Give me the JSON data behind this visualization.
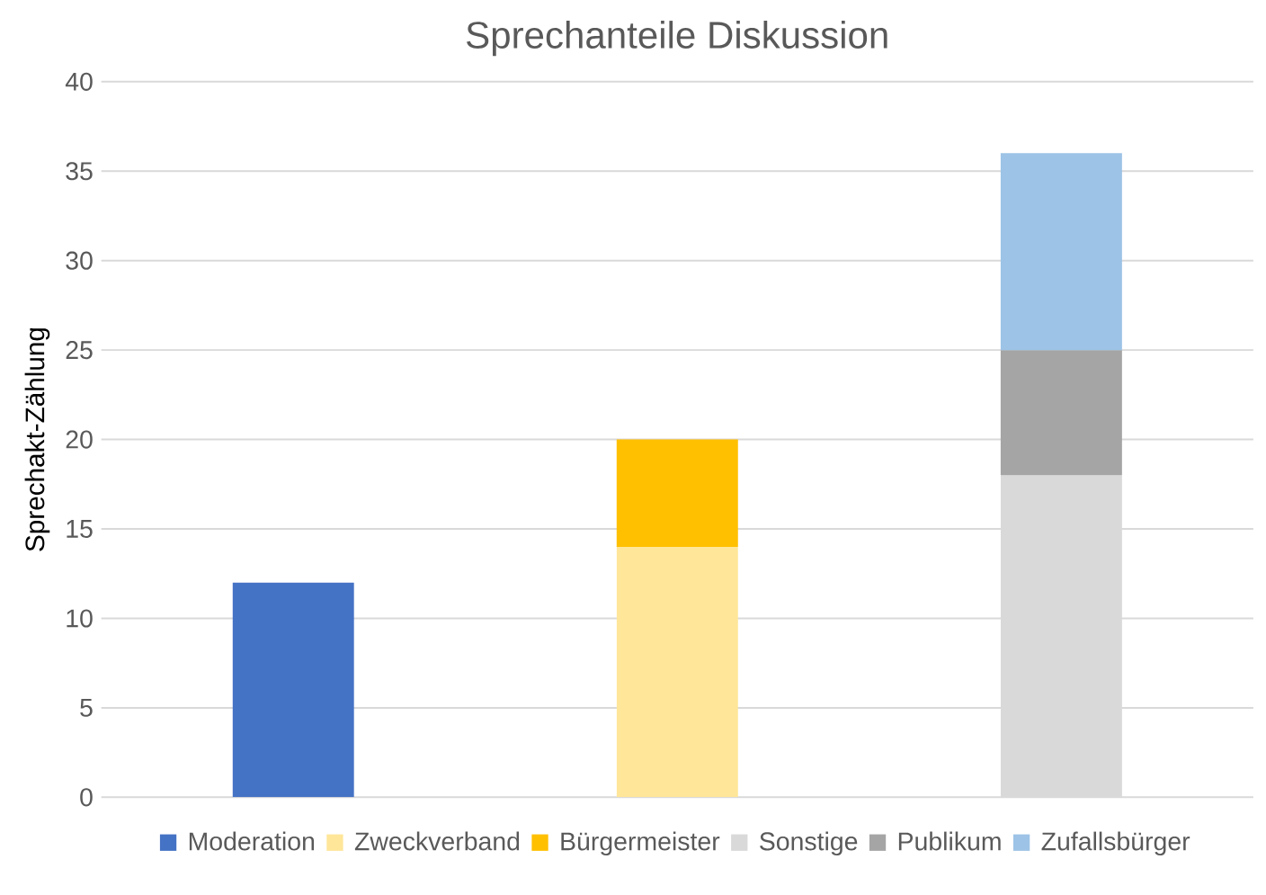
{
  "chart_data": {
    "type": "bar",
    "title": "Sprechanteile Diskussion",
    "ylabel": "Sprechakt-Zählung",
    "categories": [
      null,
      null,
      null
    ],
    "stacked": true,
    "series": [
      {
        "name": "Moderation",
        "color": "#4472c4",
        "values": [
          12,
          null,
          null
        ]
      },
      {
        "name": "Zweckverband",
        "color": "#ffe699",
        "values": [
          null,
          14,
          null
        ]
      },
      {
        "name": "Bürgermeister",
        "color": "#ffc000",
        "values": [
          null,
          6,
          null
        ]
      },
      {
        "name": "Sonstige",
        "color": "#d9d9d9",
        "values": [
          null,
          null,
          18
        ]
      },
      {
        "name": "Publikum",
        "color": "#a5a5a5",
        "values": [
          null,
          null,
          7
        ]
      },
      {
        "name": "Zufallsbürger",
        "color": "#9dc3e6",
        "values": [
          null,
          null,
          11
        ]
      }
    ],
    "ylim": [
      0,
      40
    ],
    "yticks": [
      0,
      5,
      10,
      15,
      20,
      25,
      30,
      35,
      40
    ],
    "grid": "y",
    "legend": "bottom"
  }
}
